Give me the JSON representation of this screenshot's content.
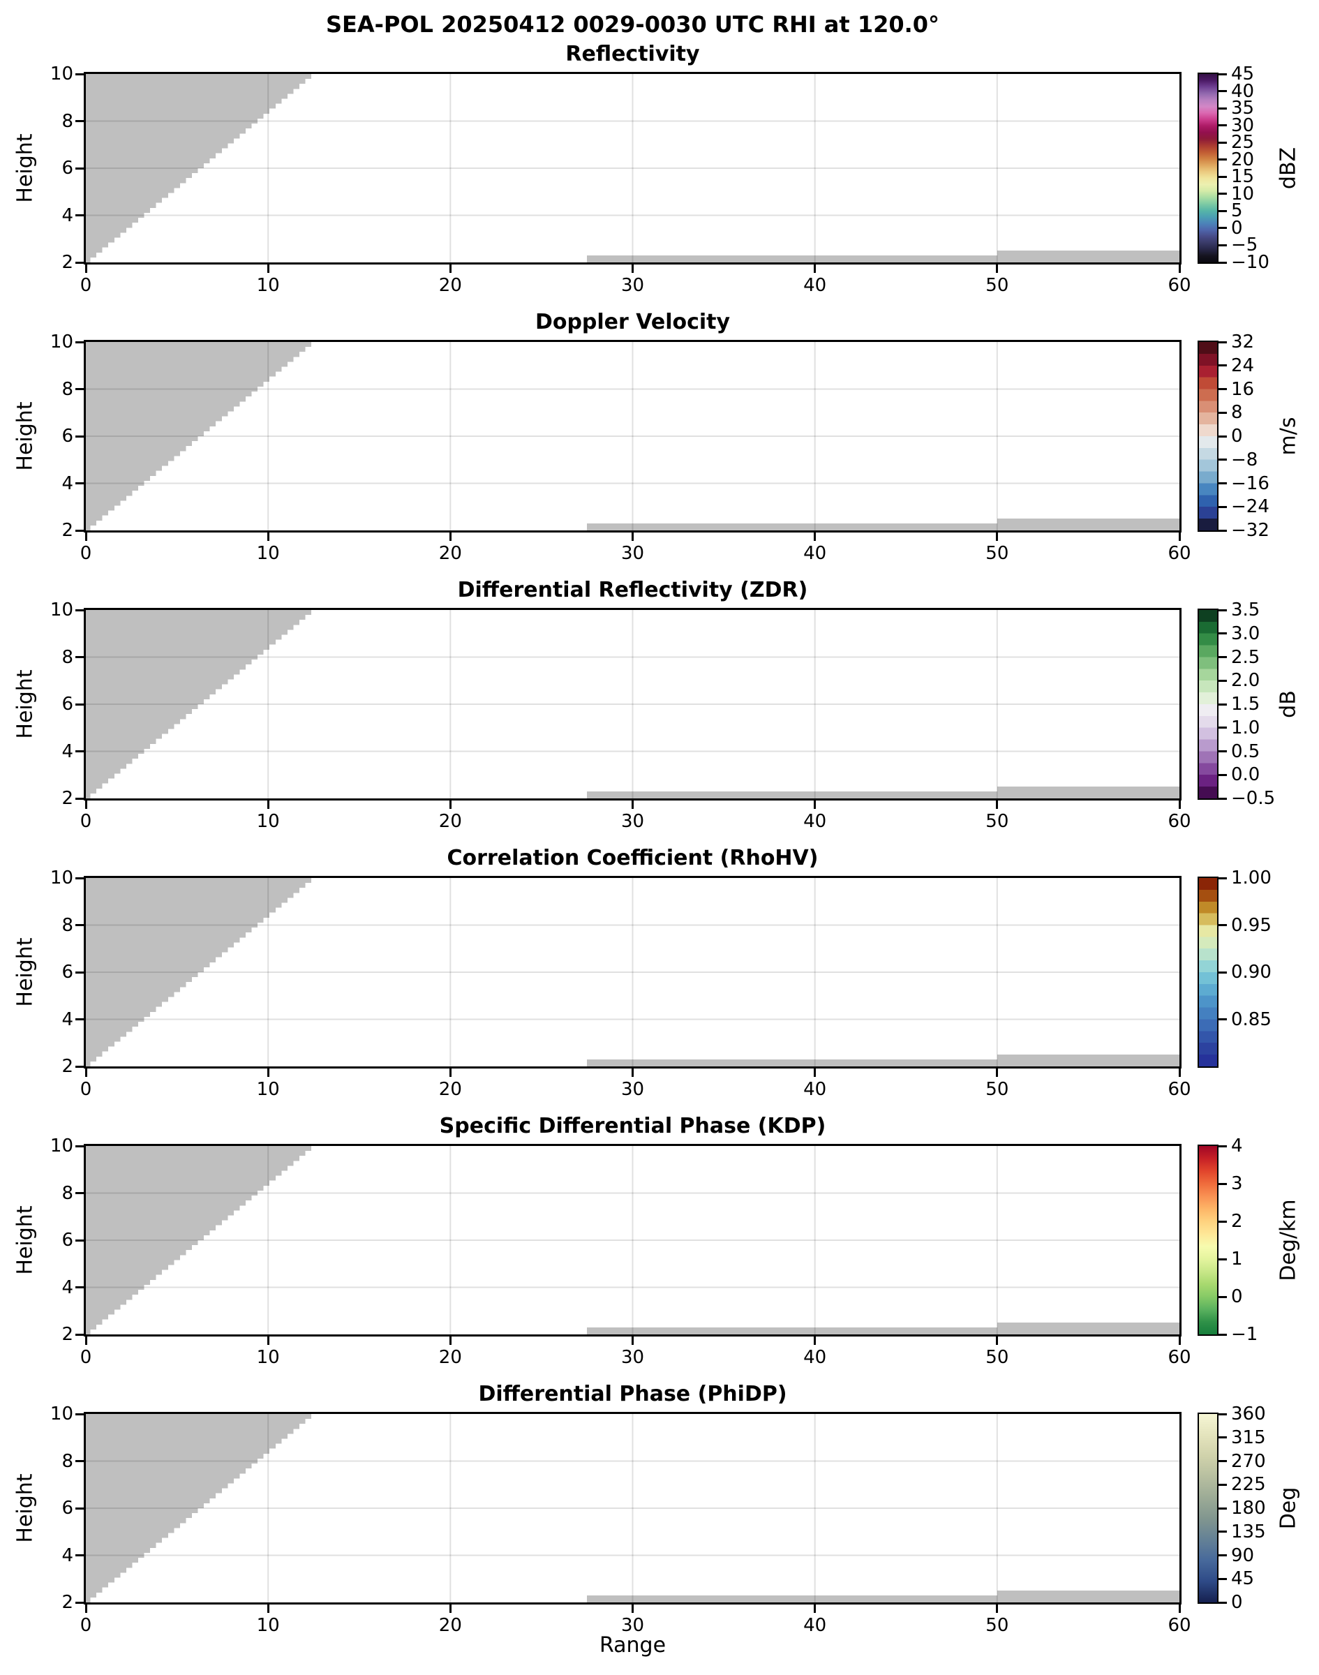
{
  "suptitle": "SEA-POL 20250412 0029-0030 UTC RHI at 120.0°",
  "xlabel": "Range",
  "ylabel": "Height",
  "chart_data": {
    "type": "heatmap",
    "description_title": "SEA-POL 20250412 0029-0030 UTC RHI at 120.0°",
    "xlabel": "Range",
    "ylabel": "Height",
    "xlim": [
      0,
      60
    ],
    "ylim": [
      2,
      10
    ],
    "x_tick_values": [
      0,
      10,
      20,
      30,
      40,
      50,
      60
    ],
    "x_tick_labels": [
      "0",
      "10",
      "20",
      "30",
      "40",
      "50",
      "60"
    ],
    "y_tick_values": [
      2,
      4,
      6,
      8,
      10
    ],
    "y_tick_labels": [
      "2",
      "4",
      "6",
      "8",
      "10"
    ],
    "grid": true,
    "gridline_values_x": [
      10,
      20,
      30,
      40,
      50
    ],
    "gridline_values_y": [
      4,
      6,
      8
    ],
    "nodata_color": "#bfbfbf",
    "blanked_regions": {
      "beam_wedge": {
        "x_from": 0,
        "x_to": 12.7,
        "height_from": 2.0,
        "height_to": 10.0,
        "stair_steps": 38,
        "first_step_x": 0.25
      },
      "ground_strips": [
        {
          "x_from": 27.5,
          "x_to": 50,
          "height_from": 2.0,
          "height_to": 2.3
        },
        {
          "x_from": 50,
          "x_to": 60,
          "height_from": 2.0,
          "height_to": 2.5
        }
      ]
    },
    "panels": [
      {
        "title": "Reflectivity",
        "colorbar": {
          "unit": "dBZ",
          "vmax": 45,
          "vmin": -10,
          "tick_values": [
            45,
            40,
            35,
            30,
            25,
            20,
            15,
            10,
            5,
            0,
            -5,
            -10
          ],
          "tick_labels": [
            "45",
            "40",
            "35",
            "30",
            "25",
            "20",
            "15",
            "10",
            "5",
            "0",
            "−5",
            "−10"
          ],
          "style": "continuous",
          "colors": [
            "#351045",
            "#4c1a66",
            "#6f3f92",
            "#9168ae",
            "#b77fc0",
            "#d287c6",
            "#db68b1",
            "#cc3d8d",
            "#ad1b66",
            "#93104e",
            "#8e1a38",
            "#aa3a32",
            "#c05a33",
            "#d07f41",
            "#dfa65e",
            "#ebc97e",
            "#f0e49c",
            "#ecf0b0",
            "#d4eba8",
            "#a9dda3",
            "#7ecaa4",
            "#57b6a7",
            "#4b9fb3",
            "#4c83b9",
            "#4f66ac",
            "#474b88",
            "#393a67",
            "#272647",
            "#15131f",
            "#0a0910"
          ]
        }
      },
      {
        "title": "Doppler Velocity",
        "colorbar": {
          "unit": "m/s",
          "vmax": 32,
          "vmin": -32,
          "tick_values": [
            32,
            24,
            16,
            8,
            0,
            -8,
            -16,
            -24,
            -32
          ],
          "tick_labels": [
            "32",
            "24",
            "16",
            "8",
            "0",
            "−8",
            "−16",
            "−24",
            "−32"
          ],
          "style": "discrete",
          "colors": [
            "#4f0d17",
            "#7f1226",
            "#a92031",
            "#c04b36",
            "#cd6d50",
            "#d98f75",
            "#e4b49e",
            "#efd9cd",
            "#e3e9ec",
            "#c5d9e3",
            "#a3c6da",
            "#79abcd",
            "#4886c0",
            "#2f62ae",
            "#2b4195",
            "#191c3f"
          ]
        }
      },
      {
        "title": "Differential Reflectivity (ZDR)",
        "colorbar": {
          "unit": "dB",
          "vmax": 3.5,
          "vmin": -0.5,
          "tick_values": [
            3.5,
            3.0,
            2.5,
            2.0,
            1.5,
            1.0,
            0.5,
            0.0,
            -0.5
          ],
          "tick_labels": [
            "3.5",
            "3.0",
            "2.5",
            "2.0",
            "1.5",
            "1.0",
            "0.5",
            "0.0",
            "−0.5"
          ],
          "style": "discrete",
          "colors": [
            "#0e4021",
            "#1a6b33",
            "#338c46",
            "#5aa860",
            "#7fbf7d",
            "#a6d69c",
            "#c7e6bc",
            "#e2f0d9",
            "#efedf2",
            "#e4dbeb",
            "#d2c0e0",
            "#b99bcd",
            "#9f73b6",
            "#85499e",
            "#6b2282",
            "#450c52"
          ]
        }
      },
      {
        "title": "Correlation Coefficient (RhoHV)",
        "colorbar": {
          "unit": "",
          "vmax": 1.0,
          "vmin": 0.8,
          "tick_values": [
            1.0,
            0.95,
            0.9,
            0.85
          ],
          "tick_labels": [
            "1.00",
            "0.95",
            "0.90",
            "0.85"
          ],
          "style": "discrete",
          "colors": [
            "#8a2506",
            "#a54f10",
            "#c08a28",
            "#d6bc5d",
            "#e7e8a4",
            "#d5eabc",
            "#b8e2cc",
            "#93d4d6",
            "#73c1d6",
            "#5dabd1",
            "#4d94c9",
            "#4480c0",
            "#3c6cb6",
            "#3356aa",
            "#2c429f",
            "#26329a"
          ]
        }
      },
      {
        "title": "Specific Differential Phase (KDP)",
        "colorbar": {
          "unit": "Deg/km",
          "vmax": 4,
          "vmin": -1,
          "tick_values": [
            4,
            3,
            2,
            1,
            0,
            -1
          ],
          "tick_labels": [
            "4",
            "3",
            "2",
            "1",
            "0",
            "−1"
          ],
          "style": "continuous",
          "colors": [
            "#a00626",
            "#c62026",
            "#e1452c",
            "#ef6c3c",
            "#f99153",
            "#fdb567",
            "#fed27f",
            "#fee797",
            "#f7fbaf",
            "#e4f49e",
            "#c8e788",
            "#a8d96f",
            "#86ca66",
            "#5bb25f",
            "#2f9148",
            "#177f3c"
          ]
        }
      },
      {
        "title": "Differential Phase (PhiDP)",
        "colorbar": {
          "unit": "Deg",
          "vmax": 360,
          "vmin": 0,
          "tick_values": [
            360,
            315,
            270,
            225,
            180,
            135,
            90,
            45,
            0
          ],
          "tick_labels": [
            "360",
            "315",
            "270",
            "225",
            "180",
            "135",
            "90",
            "45",
            "0"
          ],
          "style": "continuous",
          "colors": [
            "#f6f6d5",
            "#e4e4bd",
            "#d0d2ab",
            "#b7bfa0",
            "#9cab96",
            "#81968f",
            "#648196",
            "#47699b",
            "#2e4a87",
            "#16204f"
          ]
        }
      }
    ]
  }
}
